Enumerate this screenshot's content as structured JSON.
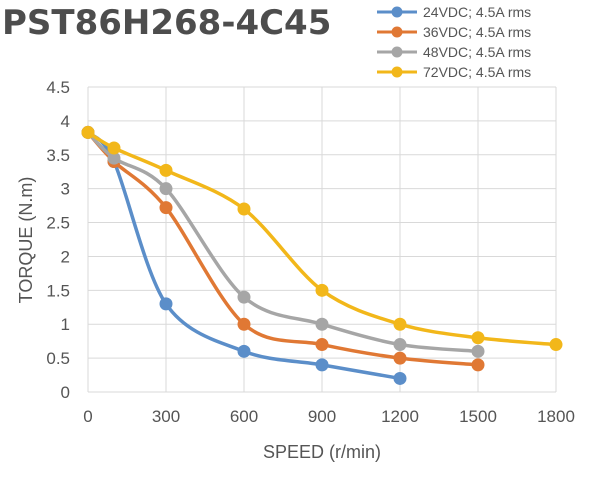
{
  "title": "PST86H268-4C45",
  "chart_data": {
    "type": "line",
    "xlabel": "SPEED (r/min)",
    "ylabel": "TORQUE (N.m)",
    "xlim": [
      0,
      1800
    ],
    "ylim": [
      0,
      4.5
    ],
    "x_ticks": [
      "0",
      "300",
      "600",
      "900",
      "1200",
      "1500",
      "1800"
    ],
    "y_ticks": [
      "0",
      "0.5",
      "1",
      "1.5",
      "2",
      "2.5",
      "3",
      "3.5",
      "4",
      "4.5"
    ],
    "grid": true,
    "smooth": true,
    "legend_position": "top-right",
    "series": [
      {
        "name": "24VDC; 4.5A rms",
        "color": "#5b8ec9",
        "x": [
          0,
          100,
          300,
          600,
          900,
          1200
        ],
        "y": [
          3.83,
          3.4,
          1.3,
          0.6,
          0.4,
          0.2
        ]
      },
      {
        "name": "36VDC; 4.5A rms",
        "color": "#e07834",
        "x": [
          0,
          100,
          300,
          600,
          900,
          1200,
          1500
        ],
        "y": [
          3.83,
          3.4,
          2.72,
          1.0,
          0.7,
          0.5,
          0.4
        ]
      },
      {
        "name": "48VDC; 4.5A rms",
        "color": "#a6a6a6",
        "x": [
          0,
          100,
          300,
          600,
          900,
          1200,
          1500
        ],
        "y": [
          3.83,
          3.45,
          3.0,
          1.4,
          1.0,
          0.7,
          0.6
        ]
      },
      {
        "name": "72VDC; 4.5A rms",
        "color": "#f2b71a",
        "x": [
          0,
          100,
          300,
          600,
          900,
          1200,
          1500,
          1800
        ],
        "y": [
          3.83,
          3.6,
          3.27,
          2.7,
          1.5,
          1.0,
          0.8,
          0.7
        ]
      }
    ]
  }
}
